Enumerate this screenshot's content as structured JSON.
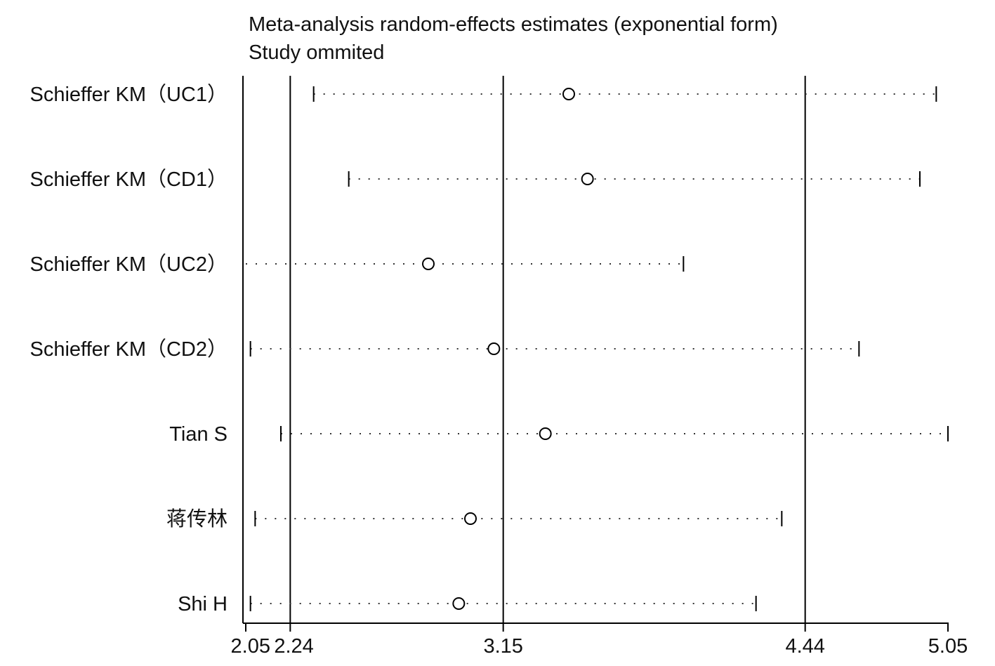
{
  "chart_data": {
    "type": "forest",
    "title": "Meta-analysis random-effects estimates (exponential form)",
    "subtitle": "Study ommited",
    "xlim": [
      2.05,
      5.05
    ],
    "xticks": [
      {
        "value": 2.05,
        "label": "2.05"
      },
      {
        "value": 2.24,
        "label": "2.24"
      },
      {
        "value": 3.15,
        "label": "3.15"
      },
      {
        "value": 4.44,
        "label": "4.44"
      },
      {
        "value": 5.05,
        "label": "5.05"
      }
    ],
    "reference_lines": [
      2.24,
      3.15,
      4.44
    ],
    "studies": [
      {
        "name": "Schieffer KM（UC1）",
        "estimate": 3.43,
        "lower": 2.34,
        "upper": 5.0
      },
      {
        "name": "Schieffer KM（CD1）",
        "estimate": 3.51,
        "lower": 2.49,
        "upper": 4.93
      },
      {
        "name": "Schieffer KM（UC2）",
        "estimate": 2.83,
        "lower": null,
        "upper": 3.92
      },
      {
        "name": "Schieffer KM（CD2）",
        "estimate": 3.11,
        "lower": 2.07,
        "upper": 4.67
      },
      {
        "name": "Tian S",
        "estimate": 3.33,
        "lower": 2.2,
        "upper": 5.05
      },
      {
        "name": "蒋传林",
        "estimate": 3.01,
        "lower": 2.09,
        "upper": 4.34
      },
      {
        "name": "Shi H",
        "estimate": 2.96,
        "lower": 2.07,
        "upper": 4.23
      }
    ]
  }
}
